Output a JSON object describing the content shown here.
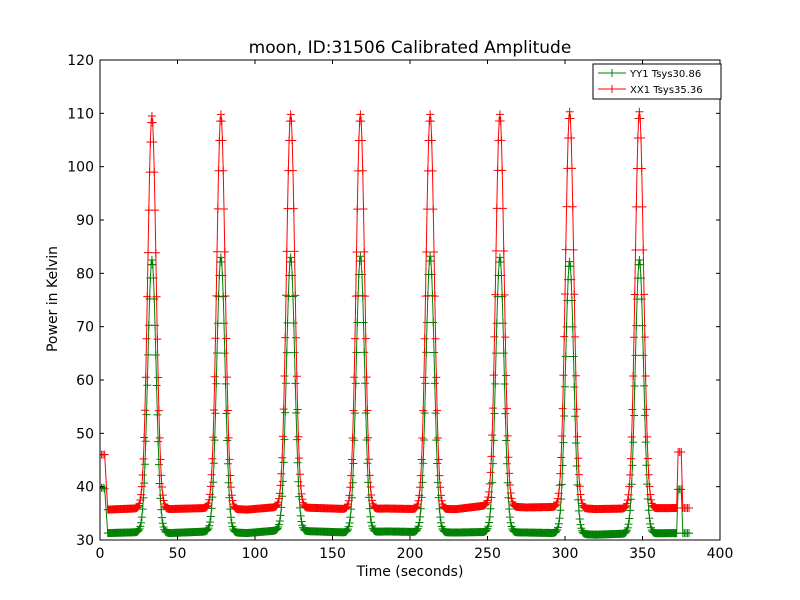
{
  "chart_data": {
    "type": "line",
    "title": "moon, ID:31506 Calibrated Amplitude",
    "xlabel": "Time (seconds)",
    "ylabel": "Power in Kelvin",
    "xlim": [
      0,
      400
    ],
    "ylim": [
      30,
      120
    ],
    "xticks": [
      0,
      50,
      100,
      150,
      200,
      250,
      300,
      350,
      400
    ],
    "yticks": [
      30,
      40,
      50,
      60,
      70,
      80,
      90,
      100,
      110,
      120
    ],
    "grid": false,
    "legend": "top-right",
    "marker": "+",
    "sample_interval_s": 1,
    "series": [
      {
        "name": "YY1 Tsys30.86",
        "color": "#008000",
        "endpoints": {
          "start": [
            [
              0,
              39.8
            ],
            [
              1,
              39.8
            ],
            [
              2,
              39.8
            ],
            [
              3,
              39.6
            ]
          ],
          "end": [
            [
              373,
              39.5
            ],
            [
              374,
              39.5
            ],
            [
              375,
              39.5
            ],
            [
              376,
              31.3
            ],
            [
              377,
              31.3
            ],
            [
              378,
              31.3
            ],
            [
              379,
              31.3
            ],
            [
              380,
              31.3
            ]
          ]
        },
        "baseline": [
          [
            5,
            31.3
          ],
          [
            30,
            31.5
          ],
          [
            45,
            31.3
          ],
          [
            70,
            31.6
          ],
          [
            95,
            31.3
          ],
          [
            115,
            31.8
          ],
          [
            140,
            31.6
          ],
          [
            160,
            31.4
          ],
          [
            185,
            31.6
          ],
          [
            205,
            31.5
          ],
          [
            230,
            31.4
          ],
          [
            250,
            31.5
          ],
          [
            275,
            31.4
          ],
          [
            295,
            31.3
          ],
          [
            320,
            31.0
          ],
          [
            340,
            31.2
          ],
          [
            372,
            31.3
          ]
        ],
        "peaks": [
          {
            "center": 33.5,
            "height": 82.5
          },
          {
            "center": 78,
            "height": 83
          },
          {
            "center": 123,
            "height": 83
          },
          {
            "center": 168,
            "height": 83.2
          },
          {
            "center": 213,
            "height": 83.2
          },
          {
            "center": 258,
            "height": 83
          },
          {
            "center": 303,
            "height": 82.2
          },
          {
            "center": 348,
            "height": 82.5
          }
        ],
        "peak_width_s": 2.7
      },
      {
        "name": "XX1 Tsys35.36",
        "color": "#ff0000",
        "endpoints": {
          "start": [
            [
              0,
              46.0
            ],
            [
              1,
              46.0
            ],
            [
              2,
              46.0
            ],
            [
              3,
              46.0
            ]
          ],
          "end": [
            [
              373,
              46.5
            ],
            [
              374,
              46.5
            ],
            [
              375,
              46.5
            ],
            [
              376,
              36.0
            ],
            [
              377,
              36.0
            ],
            [
              378,
              36.0
            ],
            [
              379,
              36.0
            ],
            [
              380,
              36.0
            ]
          ]
        },
        "baseline": [
          [
            5,
            35.7
          ],
          [
            30,
            36.0
          ],
          [
            45,
            35.8
          ],
          [
            70,
            36.0
          ],
          [
            95,
            35.7
          ],
          [
            115,
            36.2
          ],
          [
            140,
            36.0
          ],
          [
            160,
            35.8
          ],
          [
            185,
            35.9
          ],
          [
            205,
            35.8
          ],
          [
            230,
            35.8
          ],
          [
            250,
            36.5
          ],
          [
            275,
            36.1
          ],
          [
            295,
            36.2
          ],
          [
            320,
            35.8
          ],
          [
            340,
            35.9
          ],
          [
            372,
            36.0
          ]
        ],
        "peaks": [
          {
            "center": 33.5,
            "height": 109.5
          },
          {
            "center": 78,
            "height": 109.8
          },
          {
            "center": 123,
            "height": 109.8
          },
          {
            "center": 168,
            "height": 109.8
          },
          {
            "center": 213,
            "height": 109.8
          },
          {
            "center": 258,
            "height": 109.8
          },
          {
            "center": 303,
            "height": 110.3
          },
          {
            "center": 348,
            "height": 110.3
          }
        ],
        "peak_width_s": 2.7
      }
    ]
  }
}
